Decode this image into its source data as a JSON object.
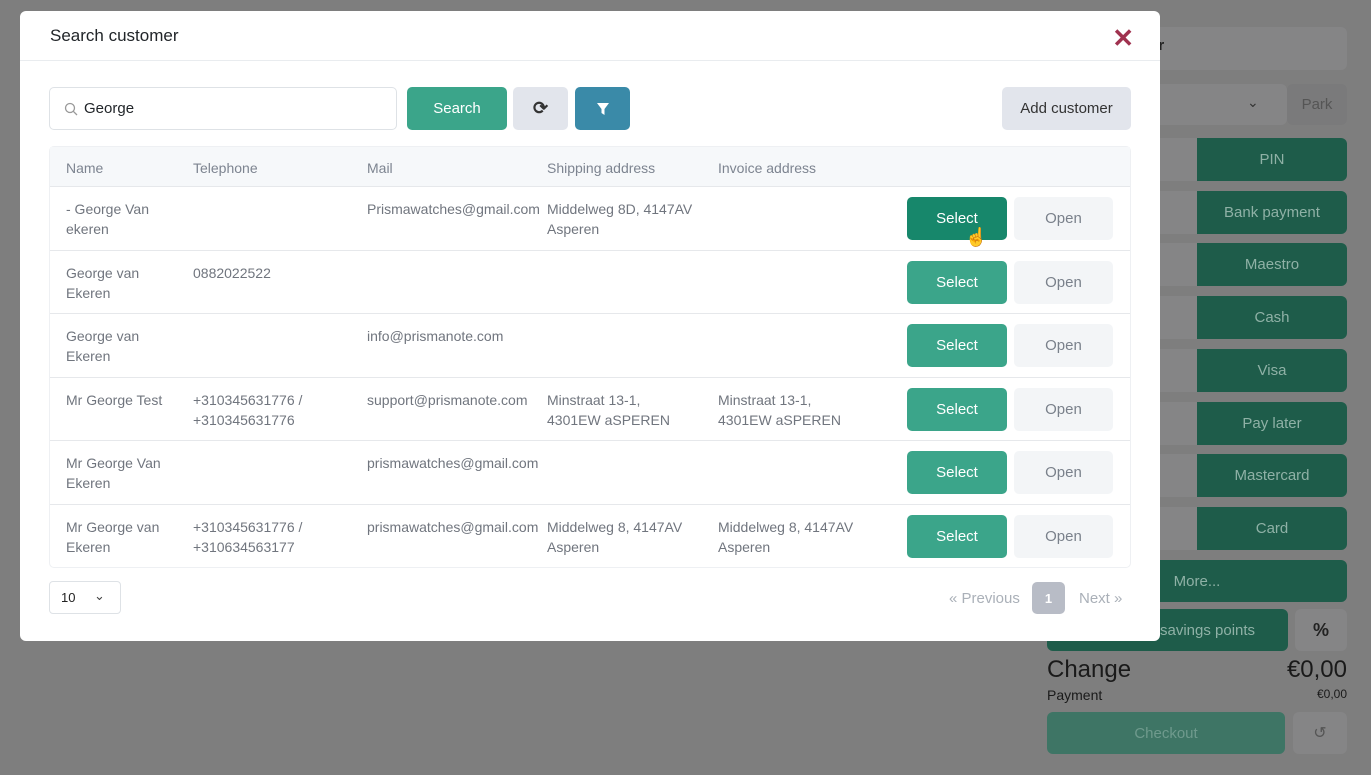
{
  "background": {
    "customer_label": "er",
    "park_label": "Park",
    "payment_methods": [
      "PIN",
      "Bank payment",
      "Maestro",
      "Cash",
      "Visa",
      "Pay later",
      "Mastercard",
      "Card"
    ],
    "more_label": "More...",
    "savings_label": "savings points",
    "percent_label": "%",
    "change_label": "Change",
    "change_value": "€0,00",
    "payment_label": "Payment",
    "payment_value": "€0,00",
    "checkout_label": "Checkout"
  },
  "modal": {
    "title": "Search customer",
    "search_value": "George",
    "search_label": "Search",
    "add_customer_label": "Add customer",
    "columns": [
      "Name",
      "Telephone",
      "Mail",
      "Shipping address",
      "Invoice address"
    ],
    "rows": [
      {
        "name": "- George Van ekeren",
        "telephone": "",
        "mail": "Prismawatches@gmail.com",
        "shipping": "Middelweg 8D, 4147AV Asperen",
        "invoice": ""
      },
      {
        "name": "George van Ekeren",
        "telephone": "0882022522",
        "mail": "",
        "shipping": "",
        "invoice": ""
      },
      {
        "name": "George van Ekeren",
        "telephone": "",
        "mail": "info@prismanote.com",
        "shipping": "",
        "invoice": ""
      },
      {
        "name": "Mr George Test",
        "telephone": "+310345631776 / +310345631776",
        "mail": "support@prismanote.com",
        "shipping": "Minstraat 13-1, 4301EW aSPEREN",
        "invoice": "Minstraat 13-1, 4301EW aSPEREN"
      },
      {
        "name": "Mr George Van Ekeren",
        "telephone": "",
        "mail": "prismawatches@gmail.com",
        "shipping": "",
        "invoice": ""
      },
      {
        "name": "Mr George van Ekeren",
        "telephone": "+310345631776 / +310634563177",
        "mail": "prismawatches@gmail.com",
        "shipping": "Middelweg 8, 4147AV Asperen",
        "invoice": "Middelweg 8, 4147AV Asperen"
      }
    ],
    "select_label": "Select",
    "open_label": "Open",
    "page_size": "10",
    "previous_label": "« Previous",
    "current_page": "1",
    "next_label": "Next »"
  }
}
